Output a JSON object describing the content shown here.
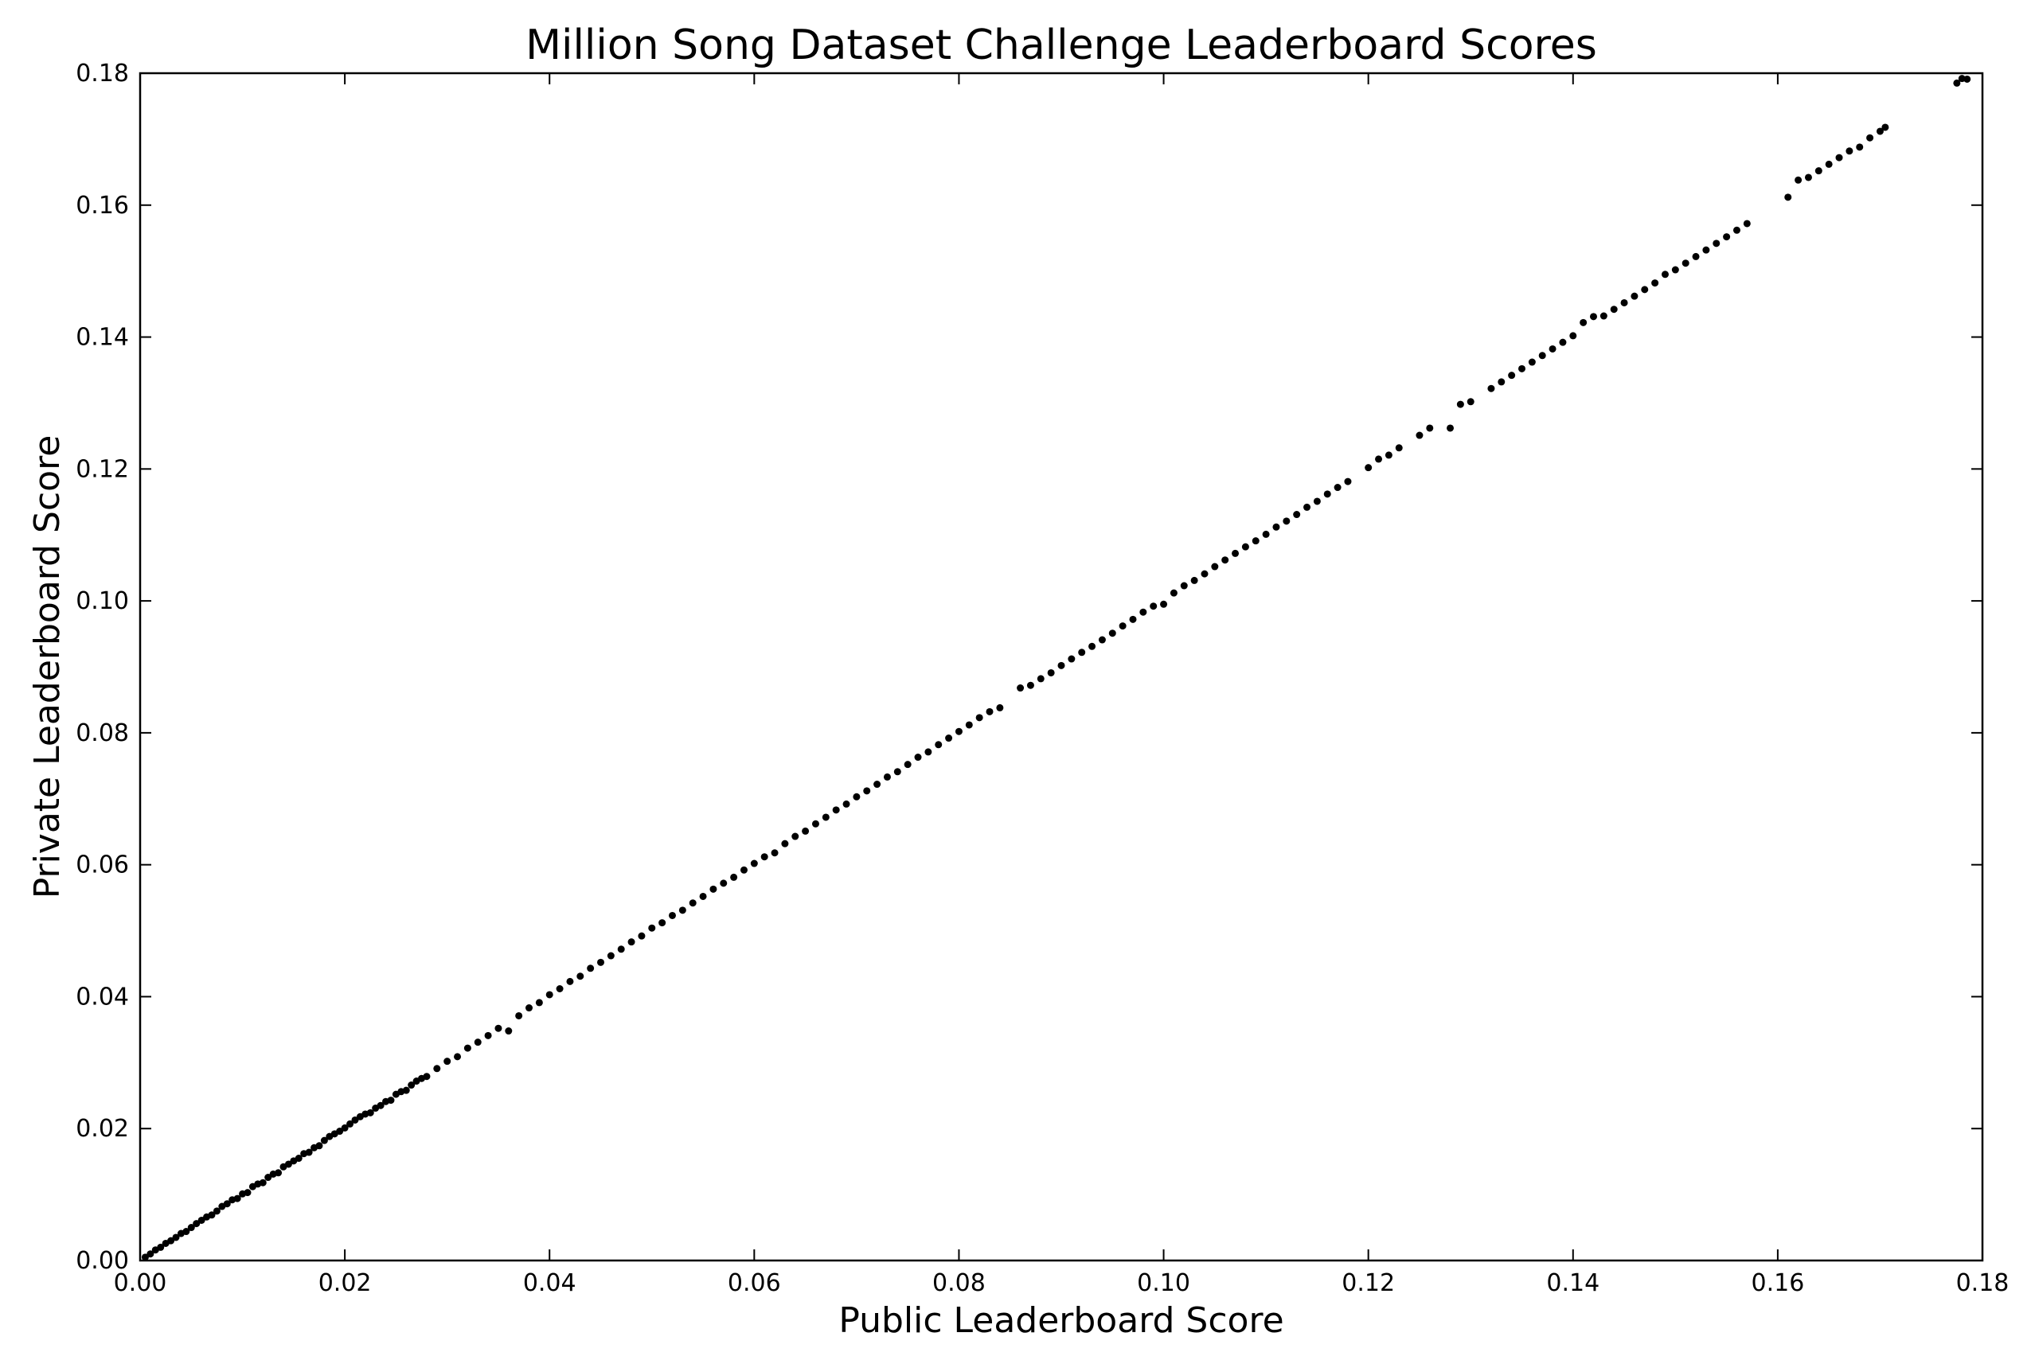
{
  "chart_data": {
    "type": "scatter",
    "title": "Million Song Dataset Challenge Leaderboard Scores",
    "xlabel": "Public Leaderboard Score",
    "ylabel": "Private Leaderboard Score",
    "xlim": [
      0.0,
      0.18
    ],
    "ylim": [
      0.0,
      0.18
    ],
    "xticks": [
      "0.00",
      "0.02",
      "0.04",
      "0.06",
      "0.08",
      "0.10",
      "0.12",
      "0.14",
      "0.16",
      "0.18"
    ],
    "yticks": [
      "0.00",
      "0.02",
      "0.04",
      "0.06",
      "0.08",
      "0.10",
      "0.12",
      "0.14",
      "0.16",
      "0.18"
    ],
    "grid": false,
    "marker_color": "#000000",
    "series": [
      {
        "points": [
          [
            0.0005,
            0.0005
          ],
          [
            0.001,
            0.001
          ],
          [
            0.0015,
            0.0016
          ],
          [
            0.002,
            0.002
          ],
          [
            0.0025,
            0.0026
          ],
          [
            0.003,
            0.003
          ],
          [
            0.0035,
            0.0035
          ],
          [
            0.004,
            0.0041
          ],
          [
            0.0045,
            0.0044
          ],
          [
            0.005,
            0.005
          ],
          [
            0.0055,
            0.0056
          ],
          [
            0.006,
            0.0061
          ],
          [
            0.0065,
            0.0066
          ],
          [
            0.007,
            0.0069
          ],
          [
            0.0075,
            0.0075
          ],
          [
            0.008,
            0.0082
          ],
          [
            0.0085,
            0.0086
          ],
          [
            0.009,
            0.0092
          ],
          [
            0.0095,
            0.0094
          ],
          [
            0.01,
            0.0101
          ],
          [
            0.0105,
            0.0103
          ],
          [
            0.011,
            0.0112
          ],
          [
            0.0115,
            0.0116
          ],
          [
            0.012,
            0.0118
          ],
          [
            0.0125,
            0.0126
          ],
          [
            0.013,
            0.0131
          ],
          [
            0.0135,
            0.0133
          ],
          [
            0.014,
            0.0142
          ],
          [
            0.0145,
            0.0146
          ],
          [
            0.015,
            0.0151
          ],
          [
            0.0155,
            0.0155
          ],
          [
            0.016,
            0.0162
          ],
          [
            0.0165,
            0.0164
          ],
          [
            0.017,
            0.0171
          ],
          [
            0.0175,
            0.0174
          ],
          [
            0.018,
            0.0182
          ],
          [
            0.0185,
            0.0188
          ],
          [
            0.019,
            0.0192
          ],
          [
            0.0195,
            0.0196
          ],
          [
            0.02,
            0.0201
          ],
          [
            0.0205,
            0.0207
          ],
          [
            0.021,
            0.0213
          ],
          [
            0.0215,
            0.0218
          ],
          [
            0.022,
            0.0222
          ],
          [
            0.0225,
            0.0224
          ],
          [
            0.023,
            0.0231
          ],
          [
            0.0235,
            0.0235
          ],
          [
            0.024,
            0.0241
          ],
          [
            0.0245,
            0.0243
          ],
          [
            0.025,
            0.0252
          ],
          [
            0.0255,
            0.0256
          ],
          [
            0.026,
            0.0258
          ],
          [
            0.0265,
            0.0266
          ],
          [
            0.027,
            0.0272
          ],
          [
            0.0275,
            0.0276
          ],
          [
            0.028,
            0.0279
          ],
          [
            0.029,
            0.0291
          ],
          [
            0.03,
            0.0302
          ],
          [
            0.031,
            0.0309
          ],
          [
            0.032,
            0.0322
          ],
          [
            0.033,
            0.0331
          ],
          [
            0.034,
            0.0341
          ],
          [
            0.035,
            0.0352
          ],
          [
            0.036,
            0.0348
          ],
          [
            0.037,
            0.0371
          ],
          [
            0.038,
            0.0383
          ],
          [
            0.039,
            0.0391
          ],
          [
            0.04,
            0.0403
          ],
          [
            0.041,
            0.0412
          ],
          [
            0.042,
            0.0423
          ],
          [
            0.043,
            0.0431
          ],
          [
            0.044,
            0.0443
          ],
          [
            0.045,
            0.0452
          ],
          [
            0.046,
            0.0462
          ],
          [
            0.047,
            0.0472
          ],
          [
            0.048,
            0.0483
          ],
          [
            0.049,
            0.0492
          ],
          [
            0.05,
            0.0504
          ],
          [
            0.051,
            0.0512
          ],
          [
            0.052,
            0.0523
          ],
          [
            0.053,
            0.0531
          ],
          [
            0.054,
            0.0542
          ],
          [
            0.055,
            0.0552
          ],
          [
            0.056,
            0.0563
          ],
          [
            0.057,
            0.0572
          ],
          [
            0.058,
            0.0581
          ],
          [
            0.059,
            0.0592
          ],
          [
            0.06,
            0.0602
          ],
          [
            0.061,
            0.0612
          ],
          [
            0.062,
            0.0618
          ],
          [
            0.063,
            0.0632
          ],
          [
            0.064,
            0.0643
          ],
          [
            0.065,
            0.0651
          ],
          [
            0.066,
            0.0662
          ],
          [
            0.067,
            0.0672
          ],
          [
            0.068,
            0.0683
          ],
          [
            0.069,
            0.0692
          ],
          [
            0.07,
            0.0703
          ],
          [
            0.071,
            0.0712
          ],
          [
            0.072,
            0.0722
          ],
          [
            0.073,
            0.0733
          ],
          [
            0.074,
            0.0741
          ],
          [
            0.075,
            0.0752
          ],
          [
            0.076,
            0.0763
          ],
          [
            0.077,
            0.0771
          ],
          [
            0.078,
            0.0782
          ],
          [
            0.079,
            0.0792
          ],
          [
            0.08,
            0.0802
          ],
          [
            0.081,
            0.0812
          ],
          [
            0.082,
            0.0823
          ],
          [
            0.083,
            0.0832
          ],
          [
            0.084,
            0.0838
          ],
          [
            0.086,
            0.0868
          ],
          [
            0.087,
            0.0872
          ],
          [
            0.088,
            0.0882
          ],
          [
            0.089,
            0.0891
          ],
          [
            0.09,
            0.0902
          ],
          [
            0.091,
            0.0912
          ],
          [
            0.092,
            0.0922
          ],
          [
            0.093,
            0.0931
          ],
          [
            0.094,
            0.0941
          ],
          [
            0.095,
            0.0951
          ],
          [
            0.096,
            0.0962
          ],
          [
            0.097,
            0.0972
          ],
          [
            0.098,
            0.0983
          ],
          [
            0.099,
            0.0992
          ],
          [
            0.1,
            0.0995
          ],
          [
            0.101,
            0.1012
          ],
          [
            0.102,
            0.1023
          ],
          [
            0.103,
            0.1031
          ],
          [
            0.104,
            0.1041
          ],
          [
            0.105,
            0.1052
          ],
          [
            0.106,
            0.1062
          ],
          [
            0.107,
            0.1072
          ],
          [
            0.108,
            0.1082
          ],
          [
            0.109,
            0.1091
          ],
          [
            0.11,
            0.1101
          ],
          [
            0.111,
            0.1112
          ],
          [
            0.112,
            0.1121
          ],
          [
            0.113,
            0.1131
          ],
          [
            0.114,
            0.1142
          ],
          [
            0.115,
            0.1151
          ],
          [
            0.116,
            0.1162
          ],
          [
            0.117,
            0.1172
          ],
          [
            0.118,
            0.1181
          ],
          [
            0.12,
            0.1202
          ],
          [
            0.121,
            0.1215
          ],
          [
            0.122,
            0.1221
          ],
          [
            0.123,
            0.1232
          ],
          [
            0.125,
            0.1251
          ],
          [
            0.126,
            0.1262
          ],
          [
            0.128,
            0.1262
          ],
          [
            0.129,
            0.1298
          ],
          [
            0.13,
            0.1302
          ],
          [
            0.132,
            0.1322
          ],
          [
            0.133,
            0.1332
          ],
          [
            0.134,
            0.1342
          ],
          [
            0.135,
            0.1352
          ],
          [
            0.136,
            0.1362
          ],
          [
            0.137,
            0.1372
          ],
          [
            0.138,
            0.1382
          ],
          [
            0.139,
            0.1392
          ],
          [
            0.14,
            0.1402
          ],
          [
            0.141,
            0.1422
          ],
          [
            0.142,
            0.1431
          ],
          [
            0.143,
            0.1432
          ],
          [
            0.144,
            0.1442
          ],
          [
            0.145,
            0.1452
          ],
          [
            0.146,
            0.1462
          ],
          [
            0.147,
            0.1472
          ],
          [
            0.148,
            0.1482
          ],
          [
            0.149,
            0.1495
          ],
          [
            0.15,
            0.1502
          ],
          [
            0.151,
            0.1512
          ],
          [
            0.152,
            0.1522
          ],
          [
            0.153,
            0.1532
          ],
          [
            0.154,
            0.1542
          ],
          [
            0.155,
            0.1552
          ],
          [
            0.156,
            0.1562
          ],
          [
            0.157,
            0.1572
          ],
          [
            0.161,
            0.1612
          ],
          [
            0.162,
            0.1638
          ],
          [
            0.163,
            0.1642
          ],
          [
            0.164,
            0.1652
          ],
          [
            0.165,
            0.1662
          ],
          [
            0.166,
            0.1672
          ],
          [
            0.167,
            0.1682
          ],
          [
            0.168,
            0.1688
          ],
          [
            0.169,
            0.1702
          ],
          [
            0.17,
            0.1712
          ],
          [
            0.1705,
            0.1718
          ],
          [
            0.1775,
            0.1785
          ],
          [
            0.178,
            0.1792
          ],
          [
            0.1785,
            0.1791
          ]
        ]
      }
    ]
  }
}
